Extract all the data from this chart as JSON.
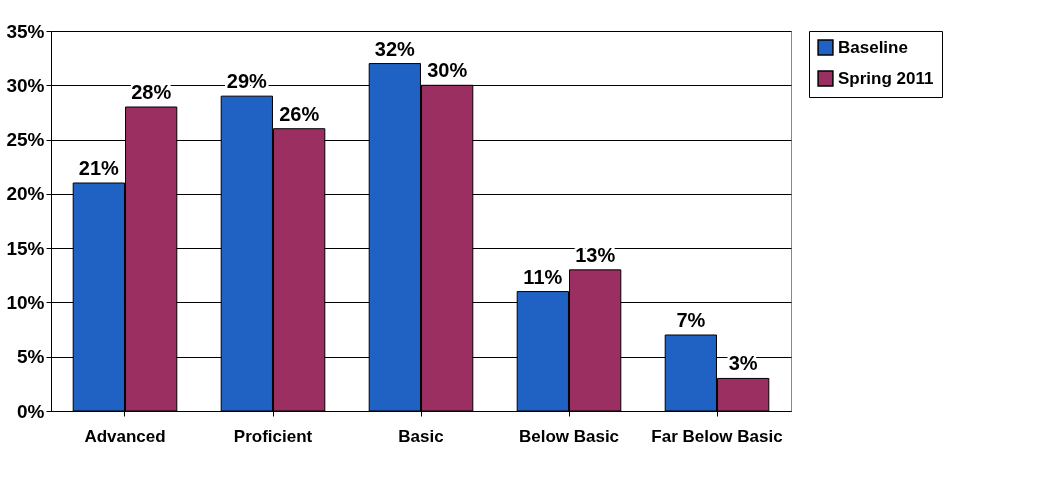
{
  "chart_data": {
    "type": "bar",
    "categories": [
      "Advanced",
      "Proficient",
      "Basic",
      "Below Basic",
      "Far Below Basic"
    ],
    "series": [
      {
        "name": "Baseline",
        "color": "#1f62c4",
        "values": [
          21,
          29,
          32,
          11,
          7
        ],
        "value_labels": [
          "21%",
          "29%",
          "32%",
          "11%",
          "7%"
        ]
      },
      {
        "name": "Spring 2011",
        "color": "#9b2f62",
        "values": [
          28,
          26,
          30,
          13,
          3
        ],
        "value_labels": [
          "28%",
          "26%",
          "30%",
          "13%",
          "3%"
        ]
      }
    ],
    "ylim": [
      0,
      35
    ],
    "yticks": [
      {
        "value": 0,
        "label": "0%"
      },
      {
        "value": 5,
        "label": "5%"
      },
      {
        "value": 10,
        "label": "10%"
      },
      {
        "value": 15,
        "label": "15%"
      },
      {
        "value": 20,
        "label": "20%"
      },
      {
        "value": 25,
        "label": "25%"
      },
      {
        "value": 30,
        "label": "30%"
      },
      {
        "value": 35,
        "label": "35%"
      }
    ],
    "grid": "y",
    "legend": "right"
  }
}
